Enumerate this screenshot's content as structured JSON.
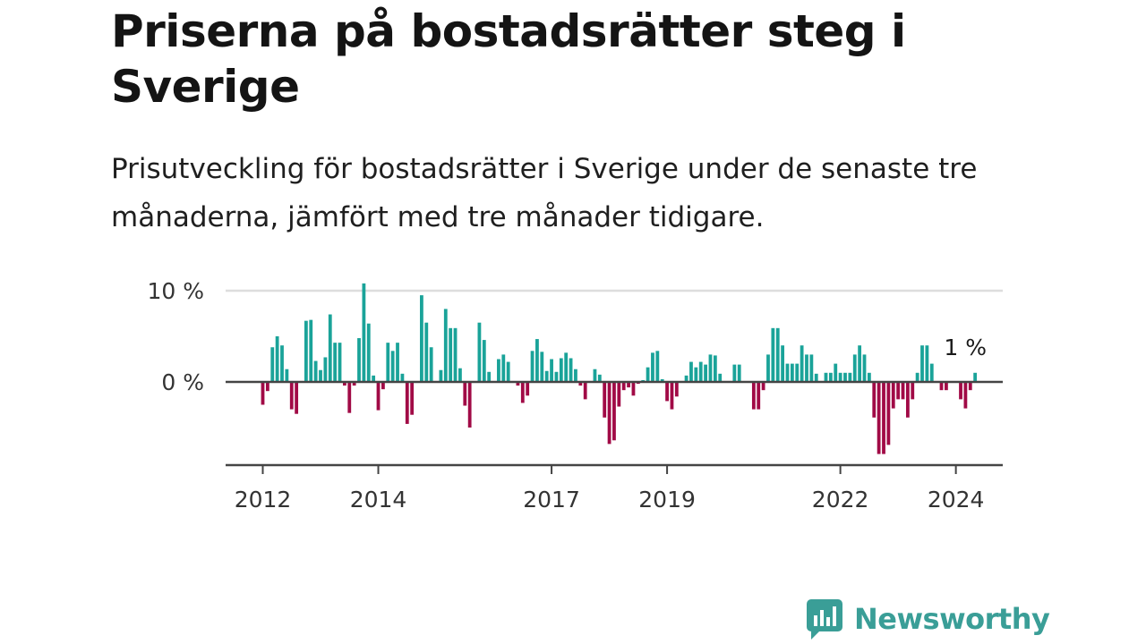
{
  "header": {
    "title": "Priserna på bostadsrätter steg i Sverige",
    "subtitle": "Prisutveckling för bostadsrätter i Sverige under de senaste tre månaderna, jämfört med tre månader tidigare."
  },
  "brand": {
    "name": "Newsworthy",
    "icon": "newsworthy-logo-icon"
  },
  "colors": {
    "positive": "#1aa399",
    "negative": "#a10a46",
    "gridline": "#dddddd",
    "axis": "#444444",
    "brand": "#3a9e97"
  },
  "chart_data": {
    "type": "bar",
    "title": "Priserna på bostadsrätter steg i Sverige",
    "subtitle": "Prisutveckling för bostadsrätter i Sverige under de senaste tre månaderna, jämfört med tre månader tidigare.",
    "xlabel": "",
    "ylabel": "",
    "ylim": [
      -9,
      10.5
    ],
    "yticks": [
      {
        "value": 0,
        "label": "0 %"
      },
      {
        "value": 10,
        "label": "10 %"
      }
    ],
    "xticks": [
      {
        "year": 2012,
        "label": "2012",
        "index": 0
      },
      {
        "year": 2014,
        "label": "2014",
        "index": 24
      },
      {
        "year": 2017,
        "label": "2017",
        "index": 60
      },
      {
        "year": 2019,
        "label": "2019",
        "index": 84
      },
      {
        "year": 2022,
        "label": "2022",
        "index": 120
      },
      {
        "year": 2024,
        "label": "2024",
        "index": 144
      }
    ],
    "start": "2011-12",
    "frequency": "monthly",
    "last_label": "1 %",
    "grid": true,
    "values": [
      -2.5,
      -1.0,
      3.8,
      5.0,
      4.0,
      1.4,
      -3.0,
      -3.5,
      0,
      6.7,
      6.8,
      2.3,
      1.3,
      2.7,
      7.4,
      4.3,
      4.3,
      -0.4,
      -3.4,
      -0.4,
      4.8,
      10.8,
      6.4,
      0.7,
      -3.1,
      -0.8,
      4.3,
      3.4,
      4.3,
      0.9,
      -4.6,
      -3.6,
      0,
      9.5,
      6.5,
      3.8,
      0,
      1.3,
      8.0,
      5.9,
      5.9,
      1.5,
      -2.6,
      -5.0,
      0,
      6.5,
      4.6,
      1.1,
      0,
      2.5,
      3.0,
      2.2,
      0,
      -0.4,
      -2.3,
      -1.5,
      3.4,
      4.7,
      3.3,
      1.2,
      2.5,
      1.1,
      2.6,
      3.2,
      2.6,
      1.4,
      -0.4,
      -1.9,
      0,
      1.4,
      0.8,
      -3.9,
      -6.8,
      -6.4,
      -2.7,
      -0.9,
      -0.6,
      -1.5,
      -0.2,
      0.2,
      1.6,
      3.2,
      3.4,
      0.3,
      -2.1,
      -3.0,
      -1.6,
      0,
      0.7,
      2.2,
      1.6,
      2.2,
      1.9,
      3.0,
      2.9,
      0.9,
      0,
      0,
      1.9,
      1.9,
      0,
      0,
      -3.0,
      -3.0,
      -0.9,
      3.0,
      5.9,
      5.9,
      4.0,
      2.0,
      2.0,
      2.0,
      4.0,
      3.0,
      3.0,
      0.9,
      0,
      1.0,
      1.0,
      2.0,
      1.0,
      1.0,
      1.0,
      3.0,
      4.0,
      3.0,
      1.0,
      -3.9,
      -7.9,
      -7.9,
      -6.9,
      -2.9,
      -1.9,
      -1.9,
      -3.9,
      -1.9,
      1.0,
      4.0,
      4.0,
      2.0,
      0,
      -0.9,
      -0.9,
      0,
      0,
      -1.9,
      -2.9,
      -0.9,
      1.0
    ]
  }
}
